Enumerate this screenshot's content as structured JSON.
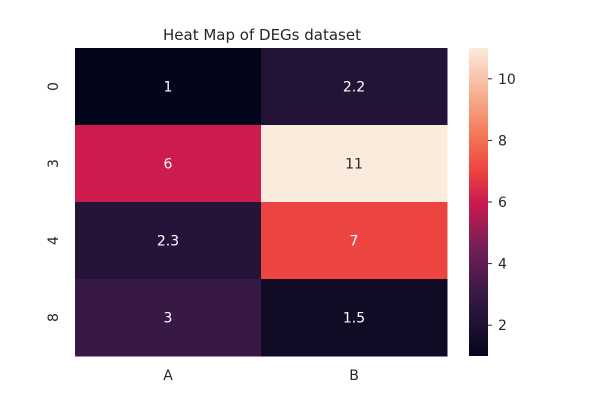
{
  "chart_data": {
    "type": "heatmap",
    "title": "Heat Map of DEGs dataset",
    "xlabel": "",
    "ylabel": "",
    "columns": [
      "A",
      "B"
    ],
    "rows": [
      "0",
      "3",
      "4",
      "8"
    ],
    "values": [
      [
        1,
        2.2
      ],
      [
        6,
        11
      ],
      [
        2.3,
        7
      ],
      [
        3,
        1.5
      ]
    ],
    "annotations": [
      [
        "1",
        "2.2"
      ],
      [
        "6",
        "11"
      ],
      [
        "2.3",
        "7"
      ],
      [
        "3",
        "1.5"
      ]
    ],
    "colorbar": {
      "range": [
        1,
        11
      ],
      "ticks": [
        2,
        4,
        6,
        8,
        10
      ],
      "colormap": "rocket"
    },
    "grid": false
  }
}
